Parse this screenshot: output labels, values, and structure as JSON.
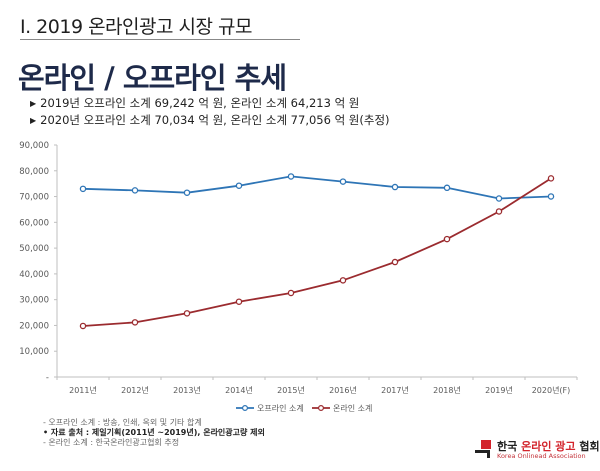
{
  "header": {
    "section_title": "Ⅰ. 2019 온라인광고 시장 규모",
    "page_title": "온라인 / 오프라인 추세"
  },
  "bullets": [
    "2019년 오프라인 소계 69,242 억 원, 온라인 소계 64,213 억 원",
    "2020년 오프라인 소계 70,034 억 원, 온라인 소계 77,056 억 원(추정)"
  ],
  "bullet_icon": "triangle-right-icon",
  "chart_data": {
    "type": "line",
    "title": "",
    "xlabel": "",
    "ylabel": "",
    "categories": [
      "2011년",
      "2012년",
      "2013년",
      "2014년",
      "2015년",
      "2016년",
      "2017년",
      "2018년",
      "2019년",
      "2020년(F)"
    ],
    "ylim": [
      0,
      90000
    ],
    "yticks": [
      0,
      10000,
      20000,
      30000,
      40000,
      50000,
      60000,
      70000,
      80000,
      90000
    ],
    "ytick_labels": [
      "-",
      "10,000",
      "20,000",
      "30,000",
      "40,000",
      "50,000",
      "60,000",
      "70,000",
      "80,000",
      "90,000"
    ],
    "grid": false,
    "legend_position": "bottom",
    "series": [
      {
        "name": "오프라인 소계",
        "color": "#2e75b6",
        "values": [
          73000,
          72400,
          71500,
          74200,
          77800,
          75800,
          73700,
          73400,
          69242,
          70034
        ]
      },
      {
        "name": "온라인 소계",
        "color": "#9b2b2f",
        "values": [
          19800,
          21200,
          24700,
          29200,
          32600,
          37500,
          44600,
          53500,
          64213,
          77056
        ]
      }
    ]
  },
  "notes": {
    "line1": "- 오프라인 소계 : 방송, 인쇄, 옥외 및 기타 합계",
    "line2": "• 자료 출처 : 제일기획(2011년 ~2019년), 온라인광고량 제외",
    "line3": "- 온라인 소계 : 한국온라인광고협회 추정"
  },
  "logo": {
    "ko_part1": "한국 ",
    "ko_part2": "온라인",
    "ko_part3": " 광고",
    "ko_part4": " 협회",
    "en": "Korea Onlinead Association",
    "accent": "#d3232b"
  }
}
